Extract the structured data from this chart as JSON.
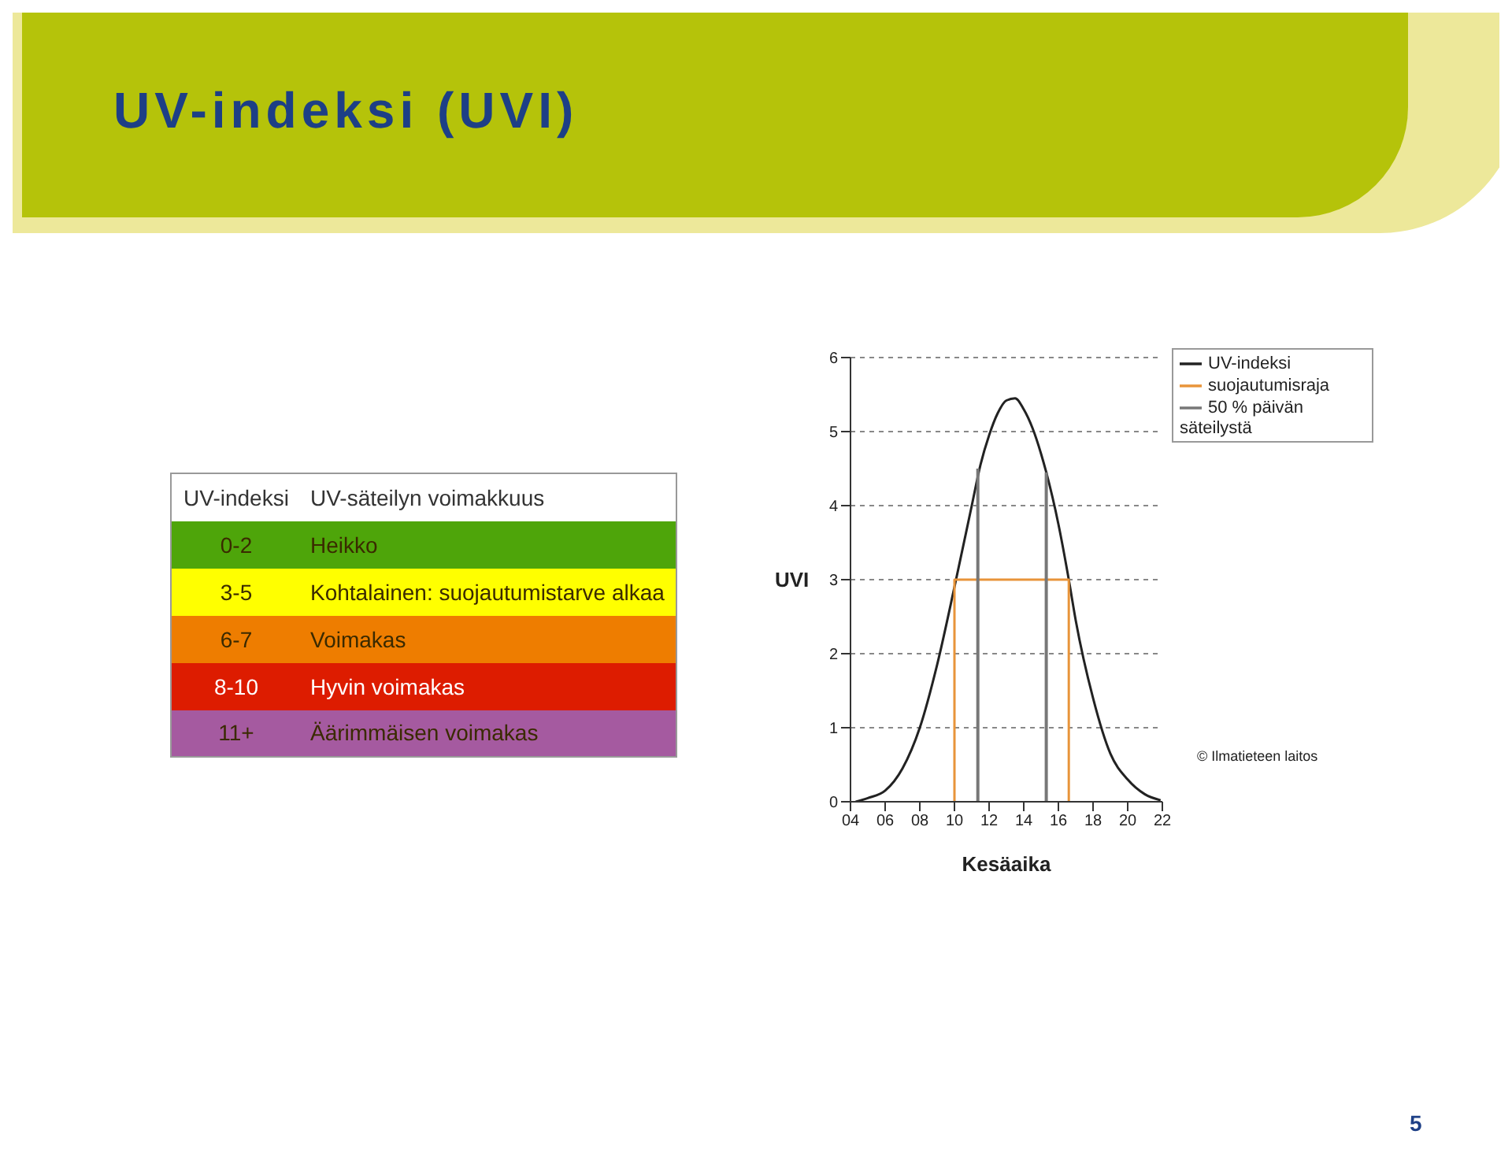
{
  "chart_data": [
    {
      "type": "other",
      "title": "UV-indeksi (UVI)",
      "categories": [
        "0-2",
        "3-5",
        "6-7",
        "8-10",
        "11+"
      ],
      "colors": [
        "#4ea50a",
        "#ffff00",
        "#ee7d00",
        "#dd1c00",
        "#a55aa0"
      ],
      "annotations": [
        "UV-indeksi",
        "UV-säteilyn voimakkuus",
        "Heikko",
        "Kohtalainen: suojautumistarve alkaa",
        "Voimakas",
        "Hyvin voimakas",
        "Äärimmäisen voimakas"
      ]
    },
    {
      "type": "line",
      "xlabel": "Kesäaika",
      "ylabel": "UVI",
      "xlim": [
        4,
        22
      ],
      "xticks": [
        {
          "value": 4,
          "label": "04"
        },
        {
          "value": 6,
          "label": "06"
        },
        {
          "value": 8,
          "label": "08"
        },
        10,
        12,
        14,
        16,
        18,
        20,
        22
      ],
      "ylim": [
        0,
        6
      ],
      "yticks": [
        0,
        1,
        2,
        3,
        4,
        5,
        6
      ],
      "grid": "y",
      "legend": "top right",
      "marker": "none",
      "line_style": "solid",
      "series": [
        {
          "name": "UV-indeksi",
          "color": "#222222",
          "x": [
            4.3,
            5,
            6,
            7,
            8,
            9,
            10,
            11,
            11.5,
            12,
            12.5,
            13,
            13.5,
            14,
            14.5,
            15,
            15.3,
            16,
            16.6,
            17,
            18,
            19,
            20,
            21,
            21.9
          ],
          "values": [
            0,
            0.05,
            0.15,
            0.45,
            1,
            1.85,
            2.9,
            4,
            4.55,
            4.95,
            5.25,
            5.42,
            5.45,
            5.3,
            5.05,
            4.7,
            4.45,
            3.75,
            3,
            2.45,
            1.4,
            0.65,
            0.3,
            0.1,
            0.02
          ]
        },
        {
          "name": "suojautumisraja",
          "color": "#e8943a",
          "x": [
            10,
            10,
            16.6,
            16.6
          ],
          "values": [
            0,
            3,
            3,
            0
          ]
        },
        {
          "name": "50 % päivän säteilystä",
          "color": "#777777",
          "x": [
            11.35,
            11.35,
            13.3,
            15.3,
            15.3
          ],
          "values": [
            0,
            4.5,
            null,
            4.45,
            0
          ]
        }
      ],
      "annotations": [
        "© Ilmatieteen laitos",
        "5"
      ]
    }
  ]
}
